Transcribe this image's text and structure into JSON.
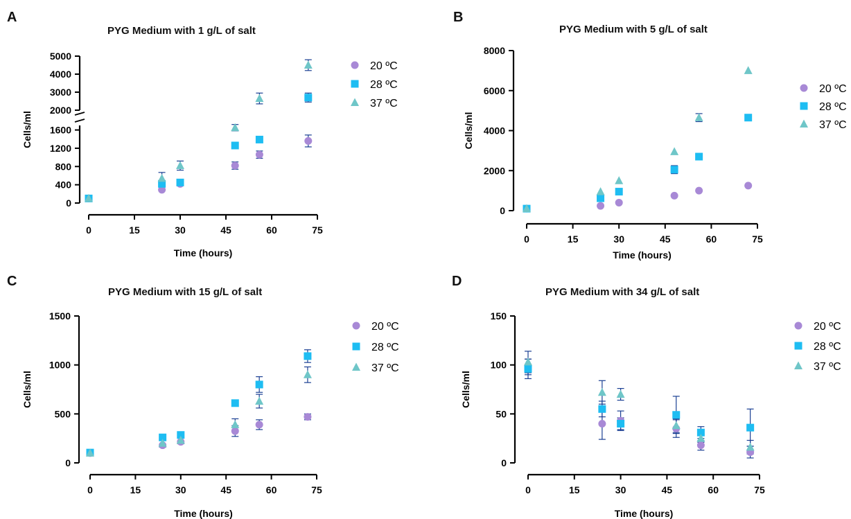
{
  "legend_labels": [
    "20 ºC",
    "28 ºC",
    "37 ºC"
  ],
  "colors": {
    "20 ºC": "#a889d6",
    "28 ºC": "#1ebdf2",
    "37 ºC": "#6fc6c8",
    "error_bar": "#1a3f93"
  },
  "chart_data": [
    {
      "type": "scatter",
      "panel": "A",
      "title": "PYG Medium with 1 g/L of salt",
      "xlabel": "Time (hours)",
      "ylabel": "Cells/ml",
      "xlim": [
        0,
        75
      ],
      "xticks": [
        0,
        15,
        30,
        45,
        60,
        75
      ],
      "y_axis_break": true,
      "ylim_lower": [
        0,
        1700
      ],
      "yticks_lower": [
        0,
        400,
        800,
        1200,
        1600
      ],
      "ylim_upper": [
        2000,
        5000
      ],
      "yticks_upper": [
        2000,
        3000,
        4000,
        5000
      ],
      "x": [
        0,
        24,
        30,
        48,
        56,
        72
      ],
      "series": [
        {
          "name": "20 ºC",
          "marker": "circle",
          "values": [
            100,
            290,
            420,
            820,
            1060,
            1360
          ],
          "errors": [
            0,
            0,
            0,
            80,
            80,
            130
          ]
        },
        {
          "name": "28 ºC",
          "marker": "square",
          "values": [
            100,
            420,
            450,
            1260,
            1390,
            2700
          ],
          "errors": [
            0,
            0,
            0,
            0,
            60,
            250
          ]
        },
        {
          "name": "37 ºC",
          "marker": "triangle",
          "values": [
            100,
            540,
            820,
            1650,
            2650,
            4500
          ],
          "errors": [
            0,
            130,
            100,
            70,
            300,
            300
          ]
        }
      ]
    },
    {
      "type": "scatter",
      "panel": "B",
      "title": "PYG Medium with 5 g/L of salt",
      "xlabel": "Time (hours)",
      "ylabel": "Cells/ml",
      "xlim": [
        0,
        75
      ],
      "xticks": [
        0,
        15,
        30,
        45,
        60,
        75
      ],
      "ylim": [
        0,
        8000
      ],
      "yticks": [
        0,
        2000,
        4000,
        6000,
        8000
      ],
      "x": [
        0,
        24,
        30,
        48,
        56,
        72
      ],
      "series": [
        {
          "name": "20 ºC",
          "marker": "circle",
          "values": [
            100,
            240,
            400,
            750,
            1000,
            1250
          ],
          "errors": [
            0,
            0,
            0,
            0,
            0,
            0
          ]
        },
        {
          "name": "28 ºC",
          "marker": "square",
          "values": [
            100,
            620,
            950,
            2050,
            2700,
            4650
          ],
          "errors": [
            0,
            0,
            0,
            200,
            0,
            0
          ]
        },
        {
          "name": "37 ºC",
          "marker": "triangle",
          "values": [
            100,
            950,
            1500,
            2950,
            4650,
            7000
          ],
          "errors": [
            0,
            0,
            0,
            0,
            200,
            0
          ]
        }
      ]
    },
    {
      "type": "scatter",
      "panel": "C",
      "title": "PYG Medium with 15 g/L of salt",
      "xlabel": "Time (hours)",
      "ylabel": "Cells/ml",
      "xlim": [
        0,
        75
      ],
      "xticks": [
        0,
        15,
        30,
        45,
        60,
        75
      ],
      "ylim": [
        0,
        1500
      ],
      "yticks": [
        0,
        500,
        1000,
        1500
      ],
      "x": [
        0,
        24,
        30,
        48,
        56,
        72
      ],
      "series": [
        {
          "name": "20 ºC",
          "marker": "circle",
          "values": [
            100,
            180,
            215,
            325,
            390,
            470
          ],
          "errors": [
            0,
            0,
            0,
            55,
            50,
            30
          ]
        },
        {
          "name": "28 ºC",
          "marker": "square",
          "values": [
            105,
            260,
            285,
            610,
            800,
            1090
          ],
          "errors": [
            0,
            0,
            0,
            0,
            80,
            65
          ]
        },
        {
          "name": "37 ºC",
          "marker": "triangle",
          "values": [
            100,
            200,
            230,
            390,
            630,
            900
          ],
          "errors": [
            0,
            40,
            35,
            60,
            70,
            80
          ]
        }
      ]
    },
    {
      "type": "scatter",
      "panel": "D",
      "title": "PYG Medium with 34 g/L of salt",
      "xlabel": "Time (hours)",
      "ylabel": "Cells/ml",
      "xlim": [
        0,
        75
      ],
      "xticks": [
        0,
        15,
        30,
        45,
        60,
        75
      ],
      "ylim": [
        0,
        150
      ],
      "yticks": [
        0,
        50,
        100,
        150
      ],
      "x": [
        0,
        24,
        30,
        48,
        56,
        72
      ],
      "series": [
        {
          "name": "20 ºC",
          "marker": "circle",
          "values": [
            98,
            40,
            43,
            35,
            18,
            11
          ],
          "errors": [
            8,
            16,
            10,
            9,
            5,
            6
          ]
        },
        {
          "name": "28 ºC",
          "marker": "square",
          "values": [
            96,
            55,
            40,
            49,
            31,
            36
          ],
          "errors": [
            10,
            8,
            6,
            19,
            6,
            19
          ]
        },
        {
          "name": "37 ºC",
          "marker": "triangle",
          "values": [
            103,
            72,
            70,
            38,
            25,
            16
          ],
          "errors": [
            11,
            12,
            6,
            7,
            4,
            7
          ]
        }
      ]
    }
  ]
}
